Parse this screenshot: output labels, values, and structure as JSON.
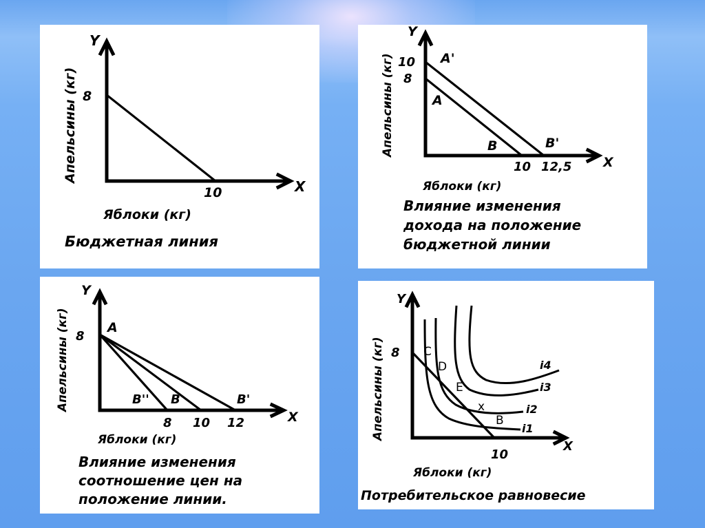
{
  "panel1": {
    "x_axis": "X",
    "y_axis": "Y",
    "ylabel": "Апельсины (кг)",
    "xlabel": "Яблоки (кг)",
    "y_tick": "8",
    "x_tick": "10",
    "caption": "Бюджетная линия"
  },
  "panel2": {
    "x_axis": "X",
    "y_axis": "Y",
    "ylabel": "Апельсины (кг)",
    "xlabel": "Яблоки (кг)",
    "y_tick_1": "10",
    "y_tick_2": "8",
    "x_tick_1": "10",
    "x_tick_2": "12,5",
    "label_a_prime": "A'",
    "label_a": "A",
    "label_b": "B",
    "label_b_prime": "B'",
    "caption_line1": "Влияние изменения",
    "caption_line2": "дохода на положение",
    "caption_line3": "бюджетной линии"
  },
  "panel3": {
    "x_axis": "X",
    "y_axis": "Y",
    "ylabel": "Апельсины (кг)",
    "xlabel": "Яблоки (кг)",
    "y_tick": "8",
    "x_tick_1": "8",
    "x_tick_2": "10",
    "x_tick_3": "12",
    "label_a": "A",
    "label_b2": "B''",
    "label_b": "B",
    "label_b_prime": "B'",
    "caption_line1": "Влияние изменения",
    "caption_line2": "соотношение цен на",
    "caption_line3": "положение линии."
  },
  "panel4": {
    "x_axis": "X",
    "y_axis": "Y",
    "ylabel": "Апельсины (кг)",
    "xlabel": "Яблоки (кг)",
    "y_tick": "8",
    "x_tick": "10",
    "label_c": "C",
    "label_d": "D",
    "label_e": "E",
    "label_x": "x",
    "label_b": "B",
    "curve_i1": "i1",
    "curve_i2": "i2",
    "curve_i3": "i3",
    "curve_i4": "i4",
    "caption": "Потребительское равновесие"
  }
}
